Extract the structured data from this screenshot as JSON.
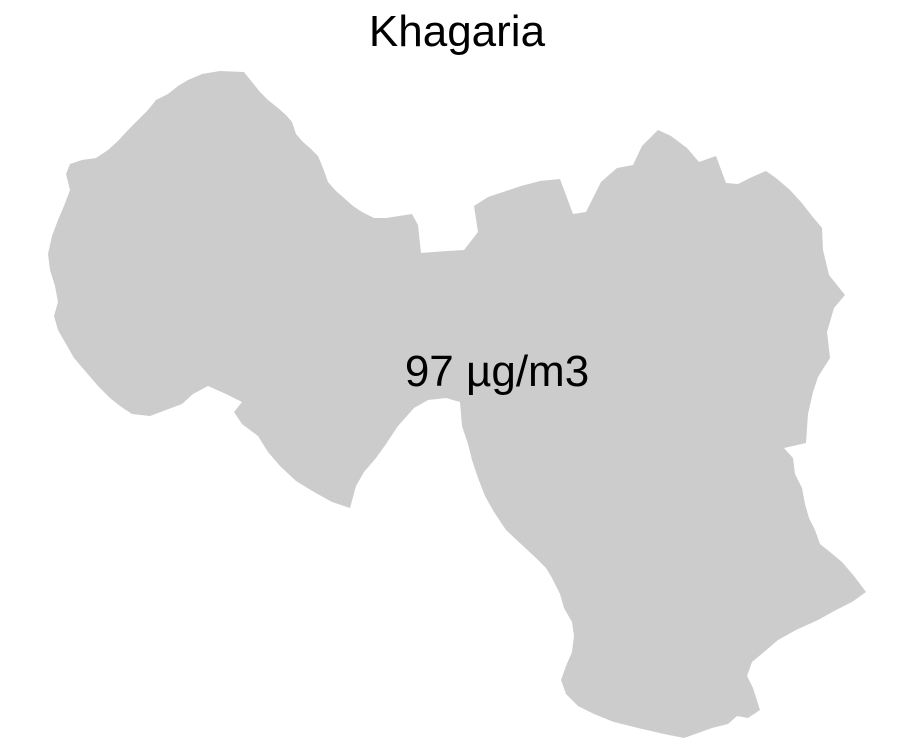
{
  "map": {
    "title": "Khagaria",
    "region_name": "Khagaria",
    "value_label": "97 µg/m3",
    "fill_color": "#cccccc",
    "background_color": "#ffffff"
  }
}
